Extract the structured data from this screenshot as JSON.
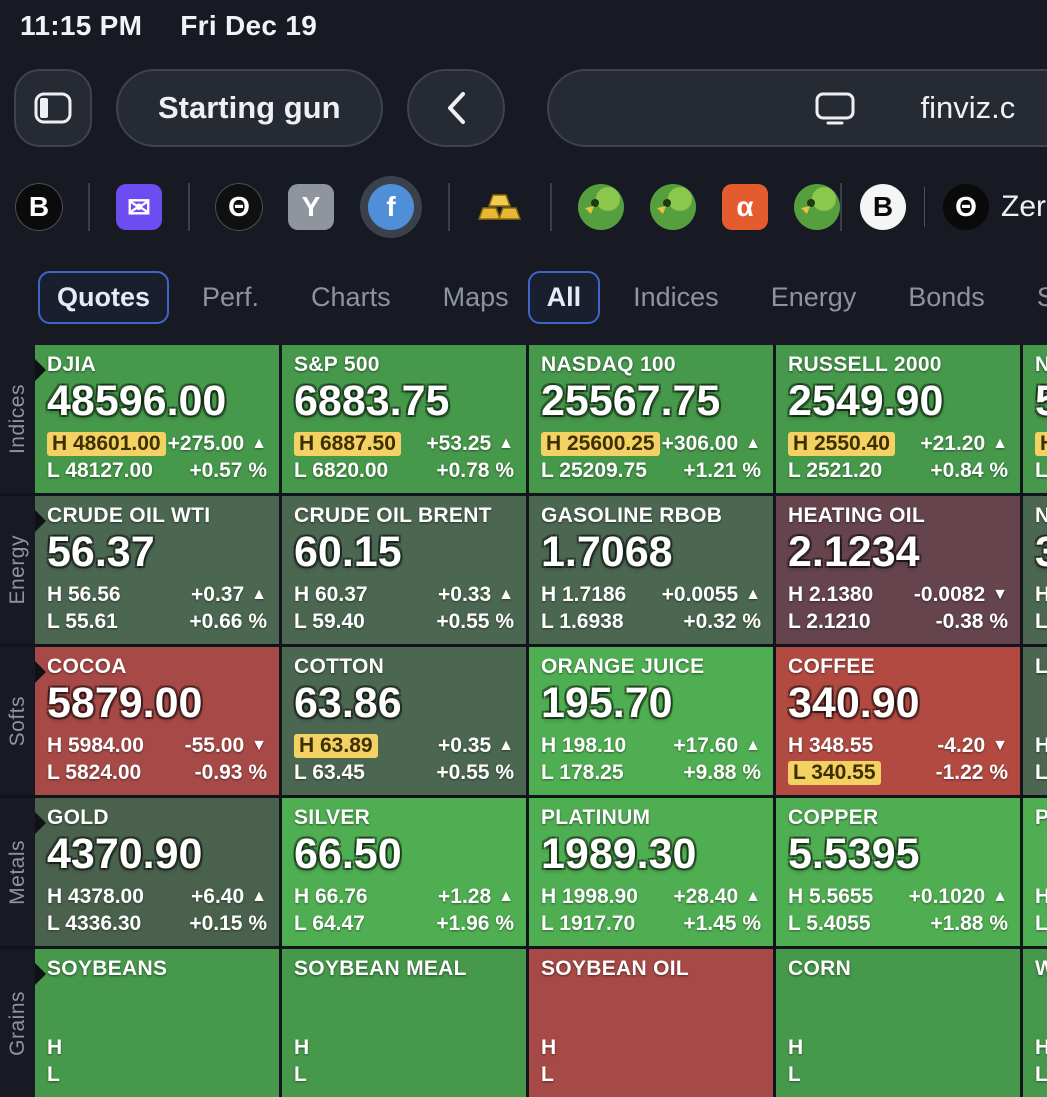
{
  "status_bar": {
    "time": "11:15 PM",
    "date": "Fri Dec 19"
  },
  "toolbar": {
    "tab_title": "Starting gun",
    "url": "finviz.c"
  },
  "favorites": {
    "left": [
      {
        "type": "letter",
        "shape": "circle",
        "glyph": "B",
        "bg": "#0b0b0c",
        "fg": "#ffffff",
        "ring": "#4a4f58",
        "name": "favicon-b-black"
      },
      {
        "type": "sep"
      },
      {
        "type": "letter",
        "shape": "square",
        "glyph": "✉",
        "bg": "#6d4cf2",
        "fg": "#ffffff",
        "name": "favicon-mail"
      },
      {
        "type": "sep"
      },
      {
        "type": "letter",
        "shape": "circle",
        "glyph": "Θ",
        "bg": "#101013",
        "fg": "#ffffff",
        "ring": "#4a4f58",
        "name": "favicon-theta"
      },
      {
        "type": "letter",
        "shape": "square",
        "glyph": "Y",
        "bg": "#8f959d",
        "fg": "#ffffff",
        "name": "favicon-y"
      },
      {
        "type": "letter",
        "shape": "circle",
        "glyph": "f",
        "bg": "#4e8fd8",
        "fg": "#ffffff",
        "selected": true,
        "name": "favicon-f-selected"
      },
      {
        "type": "sep"
      },
      {
        "type": "gold",
        "name": "favicon-gold-bars"
      },
      {
        "type": "sep"
      },
      {
        "type": "parrot",
        "name": "favicon-green-parrot-1"
      },
      {
        "type": "parrot",
        "name": "favicon-green-parrot-2"
      },
      {
        "type": "letter",
        "shape": "square",
        "glyph": "α",
        "bg": "#e45b2d",
        "fg": "#ffffff",
        "name": "favicon-alpha"
      },
      {
        "type": "parrot",
        "name": "favicon-green-parrot-3"
      }
    ],
    "right": [
      {
        "type": "sep"
      },
      {
        "type": "letter",
        "shape": "circle",
        "glyph": "B",
        "bg": "#f5f5f5",
        "fg": "#0a0a0a",
        "name": "favicon-b-white"
      },
      {
        "type": "sep-thin"
      },
      {
        "type": "letter",
        "shape": "circle",
        "glyph": "Θ",
        "bg": "#0a0a0a",
        "fg": "#ffffff",
        "label": "ZeroHedge",
        "name": "favicon-zerohedge"
      },
      {
        "type": "letter",
        "shape": "circle",
        "glyph": "",
        "bg": "#e3e3e5",
        "fg": "#0a0a0a",
        "name": "favicon-partial"
      }
    ]
  },
  "nav": {
    "views": [
      {
        "label": "Quotes",
        "active": true
      },
      {
        "label": "Perf.",
        "active": false
      },
      {
        "label": "Charts",
        "active": false
      },
      {
        "label": "Maps",
        "active": false
      }
    ],
    "filters": [
      {
        "label": "All",
        "active": true
      },
      {
        "label": "Indices",
        "active": false
      },
      {
        "label": "Energy",
        "active": false
      },
      {
        "label": "Bonds",
        "active": false
      },
      {
        "label": "Softs",
        "active": false
      }
    ]
  },
  "colors": {
    "highlight": "#f3d263",
    "green_bright": "#46984b",
    "green_vivid": "#4fae52",
    "green_muted": "#4b6751",
    "red_bright": "#a74a47",
    "red_muted": "#65444d"
  },
  "groups": [
    {
      "label": "Indices",
      "tiles": [
        {
          "name": "DJIA",
          "price": "48596.00",
          "high": "48601.00",
          "low": "48127.00",
          "change": "+275.00",
          "pct": "+0.57 %",
          "dir": "up",
          "bg": "#46984b",
          "hl_high": true,
          "hl_low": false
        },
        {
          "name": "S&P 500",
          "price": "6883.75",
          "high": "6887.50",
          "low": "6820.00",
          "change": "+53.25",
          "pct": "+0.78 %",
          "dir": "up",
          "bg": "#46984b",
          "hl_high": true,
          "hl_low": false
        },
        {
          "name": "NASDAQ 100",
          "price": "25567.75",
          "high": "25600.25",
          "low": "25209.75",
          "change": "+306.00",
          "pct": "+1.21 %",
          "dir": "up",
          "bg": "#46984b",
          "hl_high": true,
          "hl_low": false
        },
        {
          "name": "RUSSELL 2000",
          "price": "2549.90",
          "high": "2550.40",
          "low": "2521.20",
          "change": "+21.20",
          "pct": "+0.84 %",
          "dir": "up",
          "bg": "#46984b",
          "hl_high": true,
          "hl_low": false
        },
        {
          "name": "N",
          "price": "5",
          "high": "",
          "low": "",
          "change": "",
          "pct": "",
          "dir": "",
          "bg": "#46984b",
          "hl_high": true,
          "hl_low": false,
          "partial": true
        }
      ]
    },
    {
      "label": "Energy",
      "tiles": [
        {
          "name": "CRUDE OIL WTI",
          "price": "56.37",
          "high": "56.56",
          "low": "55.61",
          "change": "+0.37",
          "pct": "+0.66 %",
          "dir": "up",
          "bg": "#4b6751",
          "hl_high": false,
          "hl_low": false
        },
        {
          "name": "CRUDE OIL BRENT",
          "price": "60.15",
          "high": "60.37",
          "low": "59.40",
          "change": "+0.33",
          "pct": "+0.55 %",
          "dir": "up",
          "bg": "#4b6751",
          "hl_high": false,
          "hl_low": false
        },
        {
          "name": "GASOLINE RBOB",
          "price": "1.7068",
          "high": "1.7186",
          "low": "1.6938",
          "change": "+0.0055",
          "pct": "+0.32 %",
          "dir": "up",
          "bg": "#4b6751",
          "hl_high": false,
          "hl_low": false
        },
        {
          "name": "HEATING OIL",
          "price": "2.1234",
          "high": "2.1380",
          "low": "2.1210",
          "change": "-0.0082",
          "pct": "-0.38 %",
          "dir": "down",
          "bg": "#65444d",
          "hl_high": false,
          "hl_low": false
        },
        {
          "name": "N",
          "price": "3",
          "high": "",
          "low": "",
          "change": "",
          "pct": "",
          "dir": "",
          "bg": "#4b6751",
          "hl_high": false,
          "hl_low": false,
          "partial": true
        }
      ]
    },
    {
      "label": "Softs",
      "tiles": [
        {
          "name": "COCOA",
          "price": "5879.00",
          "high": "5984.00",
          "low": "5824.00",
          "change": "-55.00",
          "pct": "-0.93 %",
          "dir": "down",
          "bg": "#a74a47",
          "hl_high": false,
          "hl_low": false
        },
        {
          "name": "COTTON",
          "price": "63.86",
          "high": "63.89",
          "low": "63.45",
          "change": "+0.35",
          "pct": "+0.55 %",
          "dir": "up",
          "bg": "#4b6751",
          "hl_high": true,
          "hl_low": false
        },
        {
          "name": "ORANGE JUICE",
          "price": "195.70",
          "high": "198.10",
          "low": "178.25",
          "change": "+17.60",
          "pct": "+9.88 %",
          "dir": "up",
          "bg": "#4fae52",
          "hl_high": false,
          "hl_low": false
        },
        {
          "name": "COFFEE",
          "price": "340.90",
          "high": "348.55",
          "low": "340.55",
          "change": "-4.20",
          "pct": "-1.22 %",
          "dir": "down",
          "bg": "#b24a42",
          "hl_high": false,
          "hl_low": true
        },
        {
          "name": "LU",
          "price": "",
          "high": "",
          "low": "",
          "change": "",
          "pct": "",
          "dir": "",
          "bg": "#4b6751",
          "hl_high": false,
          "hl_low": false,
          "partial": true
        }
      ]
    },
    {
      "label": "Metals",
      "tiles": [
        {
          "name": "GOLD",
          "price": "4370.90",
          "high": "4378.00",
          "low": "4336.30",
          "change": "+6.40",
          "pct": "+0.15 %",
          "dir": "up",
          "bg": "#4a624d",
          "hl_high": false,
          "hl_low": false
        },
        {
          "name": "SILVER",
          "price": "66.50",
          "high": "66.76",
          "low": "64.47",
          "change": "+1.28",
          "pct": "+1.96 %",
          "dir": "up",
          "bg": "#4fae52",
          "hl_high": false,
          "hl_low": false
        },
        {
          "name": "PLATINUM",
          "price": "1989.30",
          "high": "1998.90",
          "low": "1917.70",
          "change": "+28.40",
          "pct": "+1.45 %",
          "dir": "up",
          "bg": "#4fae52",
          "hl_high": false,
          "hl_low": false
        },
        {
          "name": "COPPER",
          "price": "5.5395",
          "high": "5.5655",
          "low": "5.4055",
          "change": "+0.1020",
          "pct": "+1.88 %",
          "dir": "up",
          "bg": "#4fae52",
          "hl_high": false,
          "hl_low": false
        },
        {
          "name": "P",
          "price": "",
          "high": "",
          "low": "",
          "change": "",
          "pct": "",
          "dir": "",
          "bg": "#4fae52",
          "hl_high": false,
          "hl_low": false,
          "partial": true
        }
      ]
    },
    {
      "label": "Grains",
      "tiles": [
        {
          "name": "SOYBEANS",
          "price": "",
          "high": "",
          "low": "",
          "change": "",
          "pct": "",
          "dir": "",
          "bg": "#46984b",
          "hl_high": false,
          "hl_low": false
        },
        {
          "name": "SOYBEAN MEAL",
          "price": "",
          "high": "",
          "low": "",
          "change": "",
          "pct": "",
          "dir": "",
          "bg": "#46984b",
          "hl_high": false,
          "hl_low": false
        },
        {
          "name": "SOYBEAN OIL",
          "price": "",
          "high": "",
          "low": "",
          "change": "",
          "pct": "",
          "dir": "",
          "bg": "#a74a47",
          "hl_high": false,
          "hl_low": false
        },
        {
          "name": "CORN",
          "price": "",
          "high": "",
          "low": "",
          "change": "",
          "pct": "",
          "dir": "",
          "bg": "#46984b",
          "hl_high": false,
          "hl_low": false
        },
        {
          "name": "W",
          "price": "",
          "high": "",
          "low": "",
          "change": "",
          "pct": "",
          "dir": "",
          "bg": "#46984b",
          "hl_high": false,
          "hl_low": false,
          "partial": true
        }
      ]
    }
  ]
}
